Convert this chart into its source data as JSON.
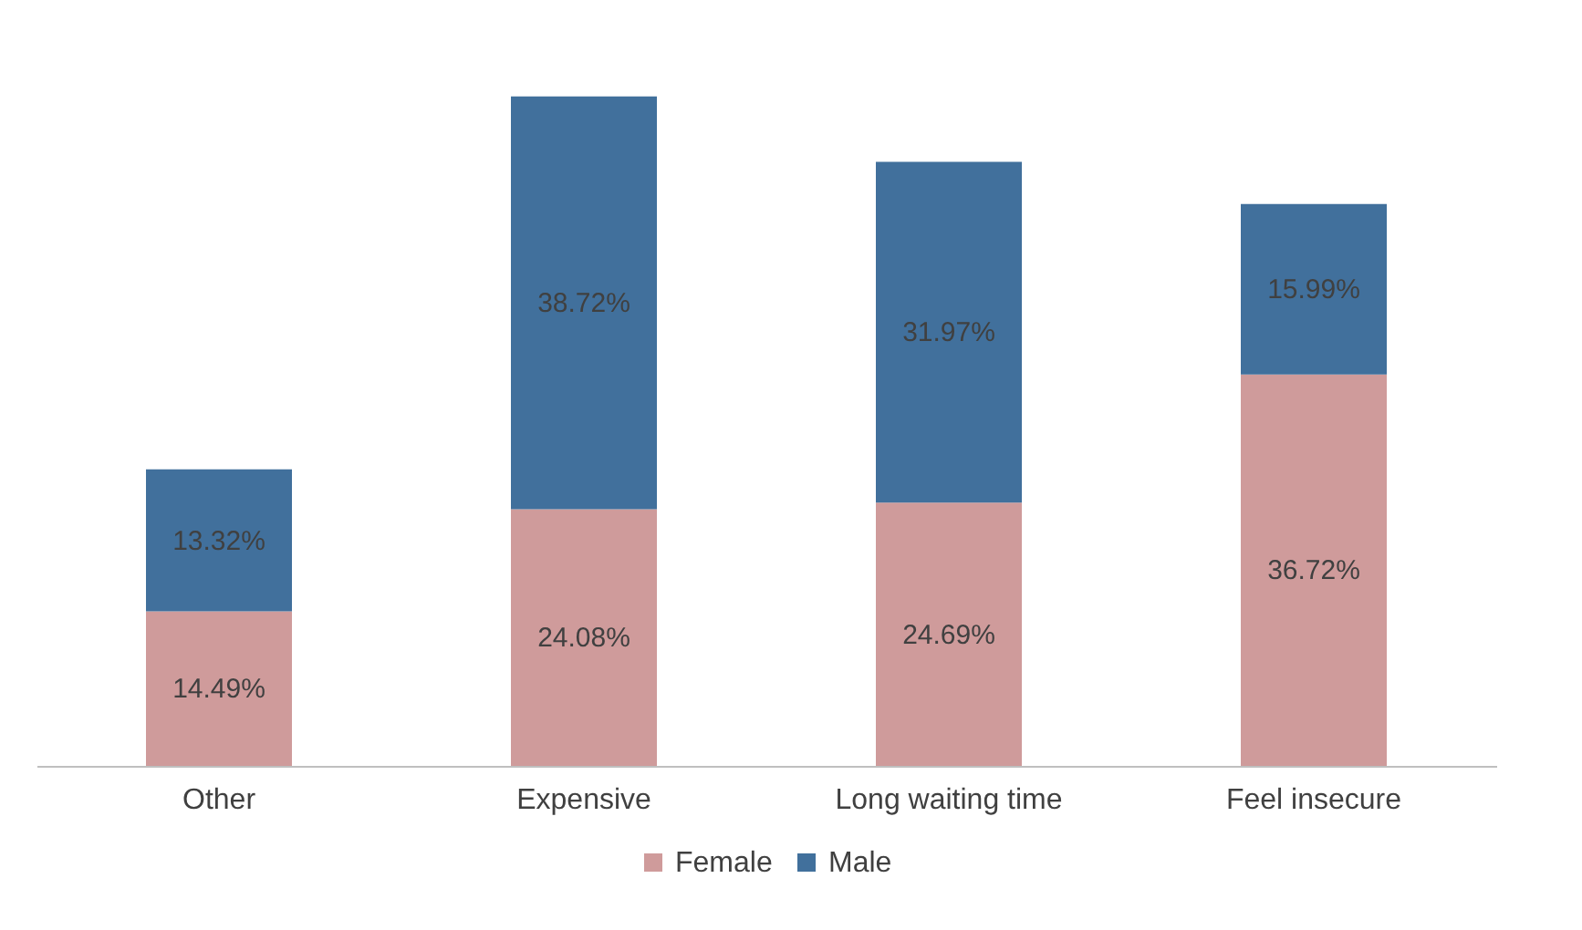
{
  "chart_data": {
    "type": "bar",
    "stacked": true,
    "categories": [
      "Other",
      "Expensive",
      "Long waiting time",
      "Feel insecure"
    ],
    "series": [
      {
        "name": "Female",
        "color": "#cf9b9b",
        "values": [
          14.49,
          24.08,
          24.69,
          36.72
        ],
        "value_labels": [
          "14.49%",
          "24.08%",
          "24.69%",
          "36.72%"
        ]
      },
      {
        "name": "Male",
        "color": "#41709c",
        "values": [
          13.32,
          38.72,
          31.97,
          15.99
        ],
        "value_labels": [
          "13.32%",
          "38.72%",
          "31.97%",
          "15.99%"
        ]
      }
    ],
    "legend": "bottom",
    "grid": false
  }
}
